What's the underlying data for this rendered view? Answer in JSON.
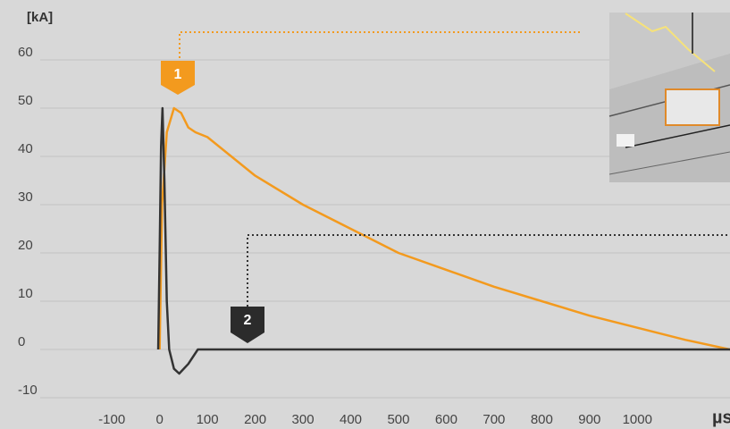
{
  "chart_data": {
    "type": "line",
    "y_label": "[kA]",
    "x_label": "µs",
    "xlim": [
      -250,
      1194
    ],
    "ylim": [
      -10,
      60
    ],
    "xticks": [
      -100,
      0,
      100,
      200,
      300,
      400,
      500,
      600,
      700,
      800,
      900,
      1000
    ],
    "yticks": [
      -10,
      0,
      10,
      20,
      30,
      40,
      50,
      60
    ],
    "grid": true,
    "series": [
      {
        "color": "#f39a1e",
        "x": [
          0,
          5,
          15,
          30,
          45,
          60,
          75,
          100,
          150,
          200,
          300,
          400,
          500,
          600,
          700,
          800,
          900,
          1000,
          1100,
          1194
        ],
        "values": [
          0,
          30,
          45,
          50,
          49,
          46,
          45,
          44,
          40,
          36,
          30,
          25,
          20,
          16.5,
          13,
          10,
          7,
          4.5,
          2,
          0
        ]
      },
      {
        "color": "#333333",
        "x": [
          -3,
          0,
          3,
          6,
          10,
          15,
          20,
          30,
          41,
          60,
          80,
          1194
        ],
        "values": [
          0,
          20,
          42,
          50,
          35,
          10,
          0,
          -4,
          -5,
          -3,
          0,
          0
        ]
      }
    ],
    "annotations": [
      {
        "label": "1"
      },
      {
        "label": "2"
      }
    ]
  }
}
